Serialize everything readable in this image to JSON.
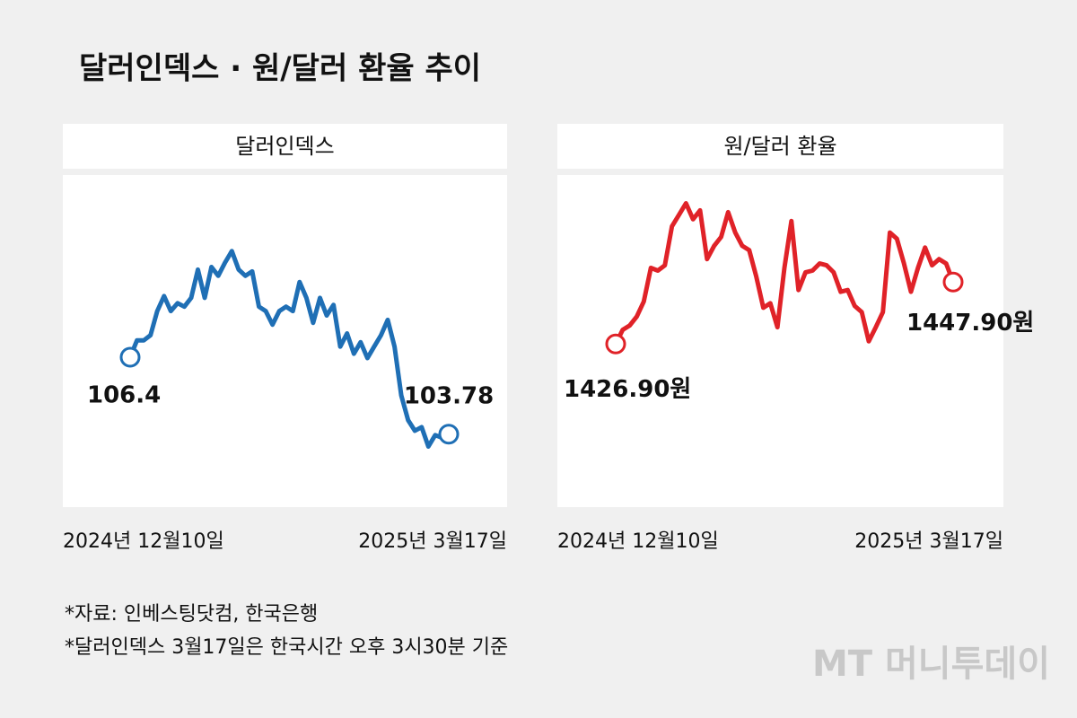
{
  "title": "달러인덱스 · 원/달러 환율 추이",
  "chart_data": [
    {
      "type": "line",
      "title": "달러인덱스",
      "color": "#1f6fb5",
      "categories": [
        "2024년 12월10일",
        null,
        null,
        null,
        null,
        null,
        null,
        null,
        null,
        null,
        null,
        null,
        null,
        null,
        null,
        null,
        null,
        null,
        null,
        null,
        null,
        null,
        null,
        null,
        null,
        null,
        null,
        null,
        null,
        null,
        null,
        null,
        null,
        null,
        null,
        null,
        null,
        null,
        null,
        null,
        null,
        null,
        null,
        null,
        null,
        null,
        null,
        "2025년 3월17일"
      ],
      "values": [
        106.4,
        106.97,
        106.97,
        107.15,
        107.97,
        108.48,
        107.97,
        108.24,
        108.12,
        108.42,
        109.38,
        108.42,
        109.47,
        109.17,
        109.62,
        110.01,
        109.38,
        109.17,
        109.32,
        108.12,
        107.97,
        107.51,
        107.97,
        108.12,
        107.97,
        108.96,
        108.42,
        107.57,
        108.42,
        107.82,
        108.18,
        106.76,
        107.21,
        106.52,
        106.91,
        106.37,
        106.76,
        107.15,
        107.67,
        106.76,
        105.1,
        104.26,
        103.9,
        104.02,
        103.36,
        103.75,
        103.66,
        103.78
      ],
      "value_labels": [
        "106.4",
        null,
        null,
        null,
        null,
        null,
        null,
        null,
        null,
        null,
        null,
        null,
        null,
        null,
        null,
        null,
        null,
        null,
        null,
        null,
        null,
        null,
        null,
        null,
        null,
        null,
        null,
        null,
        null,
        null,
        null,
        null,
        null,
        null,
        null,
        null,
        null,
        null,
        null,
        null,
        null,
        null,
        null,
        null,
        null,
        null,
        null,
        "103.78"
      ],
      "ylim": [
        101.3,
        112.6
      ]
    },
    {
      "type": "line",
      "title": "원/달러 환율",
      "color": "#e02228",
      "categories": [
        "2024년 12월10일",
        null,
        null,
        null,
        null,
        null,
        null,
        null,
        null,
        null,
        null,
        null,
        null,
        null,
        null,
        null,
        null,
        null,
        null,
        null,
        null,
        null,
        null,
        null,
        null,
        null,
        null,
        null,
        null,
        null,
        null,
        null,
        null,
        null,
        null,
        null,
        null,
        null,
        null,
        null,
        null,
        null,
        null,
        null,
        null,
        null,
        null,
        null,
        "2025년 3월17일"
      ],
      "values": [
        1426.9,
        1431.7,
        1433.2,
        1436.2,
        1441.3,
        1452.7,
        1451.8,
        1453.6,
        1466.8,
        1470.7,
        1474.6,
        1469.2,
        1472.2,
        1455.7,
        1460.2,
        1463.2,
        1471.6,
        1464.7,
        1460.2,
        1458.7,
        1449.7,
        1439.2,
        1440.7,
        1432.6,
        1452.7,
        1468.6,
        1445.2,
        1451.2,
        1451.8,
        1454.2,
        1453.6,
        1451.2,
        1444.6,
        1445.2,
        1439.8,
        1437.7,
        1427.8,
        1432.6,
        1437.7,
        1464.7,
        1462.6,
        1454.2,
        1444.6,
        1452.7,
        1459.6,
        1453.6,
        1455.7,
        1454.2,
        1447.9
      ],
      "value_labels": [
        "1426.90원",
        null,
        null,
        null,
        null,
        null,
        null,
        null,
        null,
        null,
        null,
        null,
        null,
        null,
        null,
        null,
        null,
        null,
        null,
        null,
        null,
        null,
        null,
        null,
        null,
        null,
        null,
        null,
        null,
        null,
        null,
        null,
        null,
        null,
        null,
        null,
        null,
        null,
        null,
        null,
        null,
        null,
        null,
        null,
        null,
        null,
        null,
        null,
        "1447.90원"
      ],
      "ylim": [
        1371.6,
        1484.2
      ]
    }
  ],
  "notes": [
    "*자료: 인베스팅닷컴, 한국은행",
    "*달러인덱스 3월17일은 한국시간 오후 3시30분 기준"
  ],
  "watermark": "MT 머니투데이"
}
